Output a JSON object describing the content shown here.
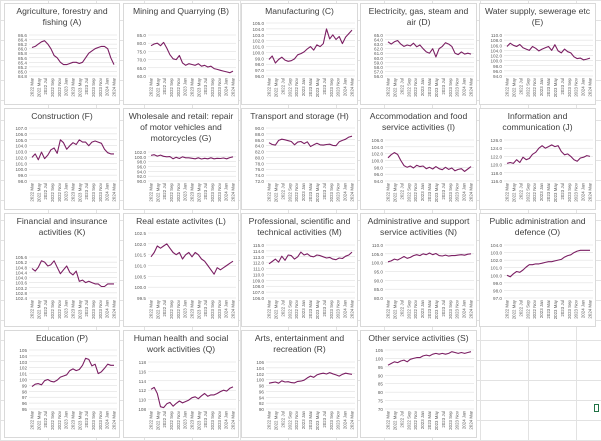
{
  "colors": {
    "line": "#7b1f63",
    "grid": "#d9d9d9",
    "text": "#595959",
    "title": "#404040"
  },
  "x_labels": [
    "2022 Mar",
    "2022 May",
    "2022 Jul",
    "2022 Sep",
    "2022 Nov",
    "2023 Jan",
    "2023 Mar",
    "2023 May",
    "2023 Jul",
    "2023 Sep",
    "2023 Nov",
    "2024 Jan",
    "2024 Mar"
  ],
  "chart_data": [
    {
      "type": "line",
      "title": "Agriculture, forestry and fishing (A)",
      "yticks": [
        "86.6",
        "86.4",
        "86.2",
        "86.0",
        "85.8",
        "85.6",
        "85.4",
        "85.2",
        "85.0",
        "84.8"
      ],
      "ylim": [
        84.8,
        86.6
      ],
      "values": [
        86.05,
        86.1,
        86.2,
        86.3,
        86.35,
        86.2,
        86.0,
        85.7,
        85.6,
        85.4,
        85.3,
        85.3,
        85.35,
        85.4,
        85.4,
        85.35,
        85.4,
        85.6,
        85.8,
        85.9,
        86.0,
        86.05,
        86.1,
        86.1,
        86.0,
        85.6,
        85.3
      ]
    },
    {
      "type": "line",
      "title": "Mining and Quarrying (B)",
      "yticks": [
        "85.0",
        "80.0",
        "75.0",
        "70.0",
        "65.0",
        "60.0"
      ],
      "ylim": [
        60,
        85
      ],
      "values": [
        78.5,
        79.5,
        80.0,
        78.5,
        80.5,
        77.0,
        73.0,
        70.5,
        70.0,
        72.5,
        68.0,
        66.5,
        67.5,
        67.0,
        66.5,
        67.5,
        66.0,
        66.5,
        65.5,
        66.0,
        64.5,
        64.0,
        63.5,
        63.0,
        62.5,
        62.0,
        63.0
      ]
    },
    {
      "type": "line",
      "title": "Manufacturing (C)",
      "yticks": [
        "105.0",
        "104.0",
        "103.0",
        "102.0",
        "101.0",
        "100.0",
        "99.0",
        "98.0",
        "97.0",
        "96.0"
      ],
      "ylim": [
        96,
        105
      ],
      "values": [
        98.8,
        99.4,
        98.2,
        98.8,
        99.2,
        98.7,
        98.5,
        98.6,
        98.9,
        99.6,
        99.8,
        100.1,
        100.6,
        101.0,
        100.4,
        101.3,
        101.0,
        101.5,
        104.0,
        102.3,
        103.0,
        102.2,
        102.7,
        101.5,
        102.6,
        103.2,
        103.8
      ]
    },
    {
      "type": "line",
      "title": "Electricity, gas, steam and air (D)",
      "yticks": [
        "65.0",
        "64.0",
        "63.0",
        "62.0",
        "61.0",
        "60.0",
        "59.0",
        "58.0",
        "57.0",
        "56.0"
      ],
      "ylim": [
        56,
        65
      ],
      "values": [
        63.5,
        63.0,
        63.5,
        63.8,
        63.0,
        62.5,
        62.8,
        62.6,
        63.2,
        62.4,
        62.8,
        62.0,
        61.3,
        61.0,
        62.0,
        60.2,
        62.0,
        62.5,
        63.3,
        63.0,
        62.5,
        61.0,
        60.7,
        61.3,
        60.8,
        61.0,
        60.8
      ]
    },
    {
      "type": "line",
      "title": "Water supply, sewerage etc (E)",
      "yticks": [
        "110.0",
        "108.0",
        "106.0",
        "104.0",
        "102.0",
        "100.0",
        "98.0",
        "96.0",
        "94.0"
      ],
      "ylim": [
        94,
        110
      ],
      "values": [
        105.5,
        106.8,
        106.0,
        105.5,
        106.3,
        105.0,
        104.5,
        104.0,
        105.5,
        104.8,
        103.8,
        104.5,
        105.0,
        105.5,
        104.0,
        106.2,
        103.8,
        103.0,
        104.5,
        103.5,
        103.0,
        101.5,
        100.8,
        101.0,
        100.3,
        100.6,
        101.0
      ]
    },
    {
      "type": "line",
      "title": "Construction (F)",
      "yticks": [
        "107.0",
        "106.0",
        "105.0",
        "104.0",
        "103.0",
        "102.0",
        "101.0",
        "100.0",
        "99.0",
        "98.0"
      ],
      "ylim": [
        98,
        107
      ],
      "values": [
        102.0,
        102.6,
        101.6,
        102.9,
        101.8,
        102.4,
        103.3,
        103.6,
        102.7,
        105.0,
        104.5,
        103.4,
        104.0,
        104.5,
        104.2,
        105.0,
        104.6,
        104.6,
        104.0,
        104.6,
        104.8,
        104.6,
        104.4,
        103.4,
        102.8,
        102.6,
        102.6
      ]
    },
    {
      "type": "line",
      "title": "Wholesale and retail: repair of motor vehicles and motorcycles (G)",
      "yticks": [
        "102.0",
        "100.0",
        "98.0",
        "96.0",
        "94.0",
        "92.0",
        "90.0"
      ],
      "ylim": [
        90,
        102
      ],
      "values": [
        100.6,
        100.9,
        100.3,
        100.7,
        100.2,
        100.0,
        100.1,
        99.2,
        99.8,
        99.3,
        100.0,
        99.6,
        99.6,
        99.4,
        99.2,
        99.6,
        99.1,
        99.4,
        99.2,
        99.6,
        99.2,
        99.4,
        99.3,
        99.5,
        99.2,
        99.7,
        100.0
      ]
    },
    {
      "type": "line",
      "title": "Transport and storage (H)",
      "yticks": [
        "90.0",
        "88.0",
        "86.0",
        "84.0",
        "82.0",
        "80.0",
        "78.0",
        "76.0",
        "74.0",
        "72.0"
      ],
      "ylim": [
        72,
        90
      ],
      "values": [
        85.0,
        84.4,
        84.2,
        85.8,
        86.2,
        86.0,
        85.7,
        85.4,
        84.3,
        85.2,
        85.4,
        84.7,
        85.3,
        83.7,
        84.3,
        84.8,
        84.3,
        84.2,
        84.4,
        84.5,
        84.1,
        84.0,
        85.3,
        85.8,
        86.2,
        86.9,
        87.2
      ]
    },
    {
      "type": "line",
      "title": "Accommodation and food service activities (I)",
      "yticks": [
        "106.0",
        "104.0",
        "102.0",
        "100.0",
        "98.0",
        "96.0",
        "94.0"
      ],
      "ylim": [
        94,
        106
      ],
      "values": [
        100.8,
        101.7,
        102.3,
        101.8,
        100.0,
        98.5,
        98.0,
        98.4,
        97.8,
        98.6,
        98.2,
        98.4,
        97.6,
        98.0,
        97.5,
        98.2,
        97.6,
        97.3,
        98.0,
        97.4,
        97.8,
        97.0,
        97.4,
        97.6,
        96.8,
        97.5,
        98.2
      ]
    },
    {
      "type": "line",
      "title": "Information and communication (J)",
      "yticks": [
        "126.0",
        "124.0",
        "122.0",
        "120.0",
        "118.0",
        "116.0"
      ],
      "ylim": [
        116,
        126
      ],
      "values": [
        120.3,
        120.5,
        120.3,
        121.2,
        120.5,
        121.8,
        121.2,
        121.5,
        122.5,
        123.0,
        124.0,
        124.6,
        124.0,
        124.4,
        124.8,
        124.4,
        124.6,
        123.2,
        122.4,
        122.6,
        122.0,
        121.2,
        120.8,
        121.6,
        121.8,
        122.2,
        122.0
      ]
    },
    {
      "type": "line",
      "title": "Financial and insurance activities (K)",
      "yticks": [
        "105.6",
        "105.2",
        "104.8",
        "104.4",
        "104.0",
        "103.6",
        "103.2",
        "102.8",
        "102.4"
      ],
      "ylim": [
        102.4,
        105.6
      ],
      "values": [
        104.7,
        104.5,
        104.8,
        105.3,
        105.2,
        104.9,
        105.0,
        105.3,
        104.8,
        104.3,
        104.6,
        104.9,
        104.4,
        104.2,
        104.5,
        103.7,
        103.8,
        103.6,
        103.7,
        103.6,
        103.5,
        103.5,
        103.3,
        103.3,
        103.5,
        103.5,
        103.5
      ]
    },
    {
      "type": "line",
      "title": "Real estate activites (L)",
      "yticks": [
        "102.5",
        "102.0",
        "101.5",
        "101.0",
        "100.5",
        "100.0",
        "99.5"
      ],
      "ylim": [
        99.5,
        102.5
      ],
      "values": [
        101.4,
        101.6,
        101.9,
        101.8,
        101.9,
        102.0,
        101.8,
        101.6,
        101.5,
        101.6,
        101.3,
        101.5,
        101.6,
        101.4,
        101.6,
        101.5,
        101.3,
        101.2,
        101.0,
        100.8,
        100.6,
        100.9,
        100.8,
        100.9,
        101.0,
        101.1,
        101.2
      ]
    },
    {
      "type": "line",
      "title": "Professional, scientific and technical activities (M)",
      "yticks": [
        "115.0",
        "114.0",
        "113.0",
        "112.0",
        "111.0",
        "110.0",
        "109.0",
        "108.0",
        "107.0",
        "106.0"
      ],
      "ylim": [
        106,
        115
      ],
      "values": [
        111.8,
        112.2,
        112.6,
        112.1,
        113.1,
        112.4,
        113.3,
        113.2,
        112.6,
        113.0,
        113.8,
        113.3,
        113.5,
        113.1,
        113.0,
        113.3,
        113.2,
        113.0,
        112.8,
        112.9,
        112.6,
        112.5,
        112.8,
        112.7,
        113.1,
        113.3,
        113.8
      ]
    },
    {
      "type": "line",
      "title": "Administrative and support service activities (N)",
      "yticks": [
        "110.0",
        "105.0",
        "100.0",
        "95.0",
        "90.0",
        "85.0",
        "80.0"
      ],
      "ylim": [
        80,
        110
      ],
      "values": [
        100.5,
        101.0,
        102.0,
        101.5,
        102.5,
        103.5,
        102.5,
        103.0,
        104.0,
        104.5,
        104.0,
        105.0,
        104.5,
        105.5,
        104.5,
        105.2,
        104.0,
        103.8,
        104.3,
        103.7,
        104.0,
        104.0,
        104.3,
        104.5,
        104.2,
        104.8,
        105.0
      ]
    },
    {
      "type": "line",
      "title": "Public administration and defence (O)",
      "yticks": [
        "104.0",
        "103.0",
        "102.0",
        "101.0",
        "100.0",
        "99.0",
        "98.0",
        "97.0"
      ],
      "ylim": [
        97,
        104
      ],
      "values": [
        100.0,
        99.8,
        100.2,
        100.5,
        100.4,
        100.7,
        101.1,
        101.4,
        101.4,
        101.5,
        101.5,
        101.6,
        101.7,
        101.8,
        101.8,
        101.9,
        102.0,
        102.1,
        102.4,
        102.6,
        102.7,
        103.0,
        103.2,
        103.3,
        103.3,
        103.3,
        103.3
      ]
    },
    {
      "type": "line",
      "title": "Education (P)",
      "yticks": [
        "105",
        "104",
        "103",
        "102",
        "101",
        "100",
        "99",
        "98",
        "97",
        "96",
        "95"
      ],
      "ylim": [
        95,
        105
      ],
      "values": [
        98.8,
        99.2,
        99.3,
        99.1,
        99.8,
        100.0,
        99.7,
        99.6,
        99.9,
        100.4,
        100.6,
        100.8,
        101.5,
        101.8,
        101.5,
        101.7,
        102.4,
        103.6,
        103.4,
        102.3,
        102.6,
        101.0,
        101.3,
        101.9,
        102.6,
        102.4,
        102.4
      ]
    },
    {
      "type": "line",
      "title": "Human health and social work activities (Q)",
      "yticks": [
        "118",
        "116",
        "114",
        "112",
        "110",
        "108"
      ],
      "ylim": [
        108,
        118
      ],
      "values": [
        112.2,
        112.6,
        111.3,
        108.5,
        108.3,
        109.1,
        109.4,
        108.6,
        109.2,
        109.7,
        109.3,
        109.6,
        109.9,
        110.4,
        110.6,
        110.2,
        110.8,
        111.3,
        110.7,
        111.0,
        111.0,
        111.3,
        111.7,
        112.0,
        111.8,
        112.4,
        112.7
      ]
    },
    {
      "type": "line",
      "title": "Arts, entertainment and recreation (R)",
      "yticks": [
        "106",
        "104",
        "102",
        "100",
        "98",
        "96",
        "94",
        "92",
        "90"
      ],
      "ylim": [
        90,
        106
      ],
      "values": [
        98.8,
        99.0,
        99.2,
        98.8,
        99.6,
        99.2,
        99.3,
        99.0,
        98.9,
        99.4,
        99.5,
        99.8,
        100.6,
        101.2,
        100.8,
        101.6,
        102.0,
        102.2,
        101.9,
        102.4,
        102.0,
        101.6,
        101.2,
        101.8,
        102.2,
        102.0,
        101.8
      ]
    },
    {
      "type": "line",
      "title": "Other service activities (S)",
      "yticks": [
        "105",
        "100",
        "95",
        "90",
        "85",
        "80",
        "75",
        "70"
      ],
      "ylim": [
        70,
        105
      ],
      "values": [
        96.0,
        97.0,
        98.0,
        97.5,
        98.5,
        99.0,
        98.0,
        99.5,
        100.0,
        100.5,
        100.5,
        101.5,
        102.0,
        101.5,
        102.5,
        103.0,
        102.5,
        103.0,
        102.5,
        103.0,
        104.0,
        103.5,
        103.0,
        103.5,
        103.0,
        103.5,
        104.0
      ]
    }
  ]
}
